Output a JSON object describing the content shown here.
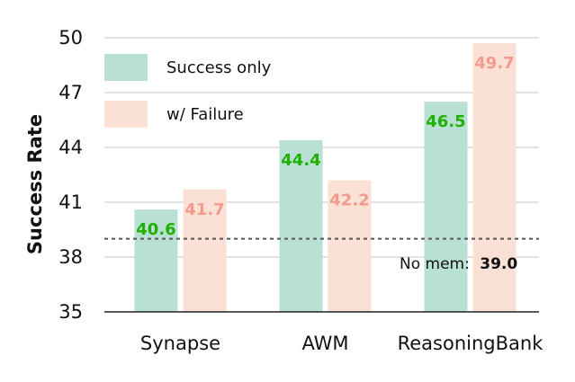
{
  "chart_data": {
    "type": "bar",
    "categories": [
      "Synapse",
      "AWM",
      "ReasoningBank"
    ],
    "series": [
      {
        "name": "Success only",
        "values": [
          40.6,
          44.4,
          46.5
        ],
        "color": "#b8e0d4",
        "label_color": "#22b000"
      },
      {
        "name": "w/ Failure",
        "values": [
          41.7,
          42.2,
          49.7
        ],
        "color": "#fbe0d5",
        "label_color": "#f29a8d"
      }
    ],
    "ylabel": "Success Rate",
    "xlabel": "",
    "ylim": [
      35,
      50
    ],
    "yticks": [
      35,
      38,
      41,
      44,
      47,
      50
    ],
    "grid": true,
    "legend_position": "top-left",
    "baseline": {
      "value": 39.0,
      "label": "No mem:",
      "value_text": "39.0",
      "color": "#555555"
    }
  }
}
